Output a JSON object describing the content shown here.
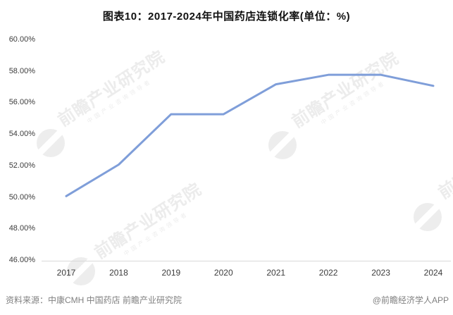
{
  "title": "图表10：2017-2024年中国药店连锁化率(单位：%)",
  "footer": {
    "source": "资料来源：中康CMH 中国药店 前瞻产业研究院",
    "credit": "@前瞻经济学人APP"
  },
  "watermark": {
    "text": "前瞻产业研究院",
    "subtext": "中国产业咨询领导者",
    "logo": "qianzhan-swoosh"
  },
  "colors": {
    "line": "#7f9ed9",
    "axis_line": "#d9d9d9",
    "tick_text": "#3c3c3c",
    "footer_text": "#808080",
    "watermark": "#ececec",
    "background": "#ffffff"
  },
  "chart_data": {
    "type": "line",
    "title": "图表10：2017-2024年中国药店连锁化率(单位：%)",
    "categories": [
      "2017",
      "2018",
      "2019",
      "2020",
      "2021",
      "2022",
      "2023",
      "2024"
    ],
    "series": [
      {
        "name": "中国药店连锁化率",
        "values": [
          50.1,
          52.1,
          55.3,
          55.3,
          57.2,
          57.8,
          57.8,
          57.1
        ]
      }
    ],
    "xlabel": "",
    "ylabel": "",
    "ylim": [
      46,
      60
    ],
    "ytick_step": 2,
    "ytick_format": "0.00%",
    "grid": false,
    "legend": "none",
    "markers": false,
    "line_width": 3
  }
}
